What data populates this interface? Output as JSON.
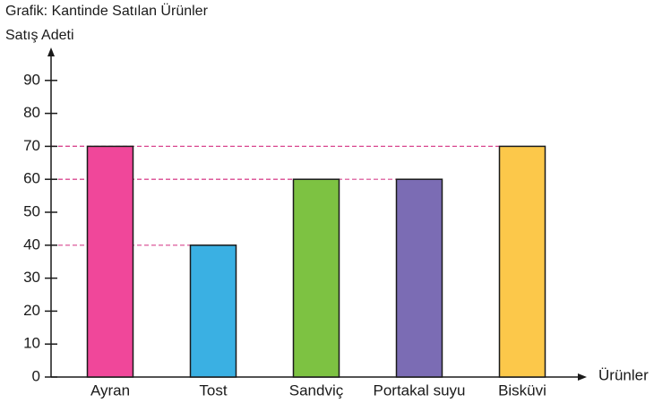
{
  "chart_data": {
    "type": "bar",
    "title": "Grafik: Kantinde Satılan Ürünler",
    "y_label": "Satış Adeti",
    "x_label": "Ürünler",
    "categories": [
      "Ayran",
      "Tost",
      "Sandviç",
      "Portakal suyu",
      "Bisküvi"
    ],
    "values": [
      70,
      40,
      60,
      60,
      70
    ],
    "colors": [
      "#f0479a",
      "#3ab0e3",
      "#7dc242",
      "#7b6cb4",
      "#fcc84a"
    ],
    "ylim": [
      0,
      100
    ],
    "yticks": [
      0,
      10,
      20,
      30,
      40,
      50,
      60,
      70,
      80,
      90
    ],
    "guide_lines": true,
    "guide_color": "#d9468f"
  }
}
